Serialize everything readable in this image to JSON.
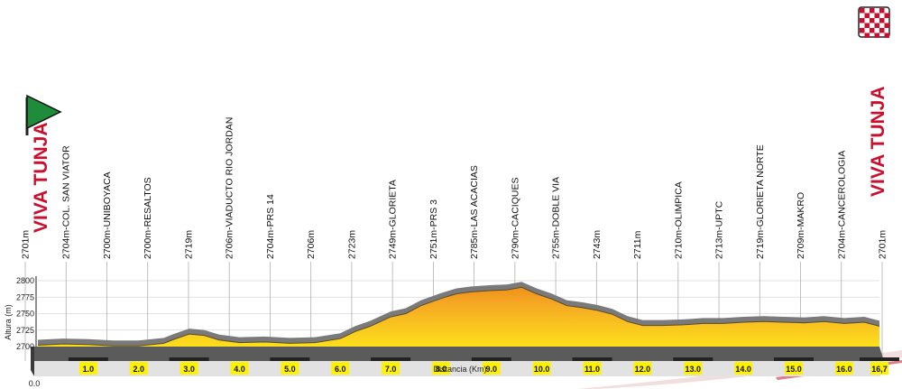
{
  "chart_data": {
    "type": "area",
    "title": "",
    "xlabel": "Distancia (Km)",
    "ylabel": "Altura (m)",
    "xlim": [
      0,
      16.7
    ],
    "ylim": [
      2700,
      2800
    ],
    "y_ticks": [
      2700,
      2725,
      2750,
      2775,
      2800
    ],
    "x_ticks": [
      "1.0",
      "2.0",
      "3.0",
      "4.0",
      "5.0",
      "6.0",
      "7.0",
      "8.0",
      "9.0",
      "10.0",
      "11.0",
      "12.0",
      "13.0",
      "14.0",
      "15.0",
      "16.0",
      "16,7"
    ],
    "x_origin_label": "0.0",
    "grid": true,
    "profile": {
      "x": [
        0,
        0.5,
        1.0,
        1.5,
        2.0,
        2.5,
        2.7,
        3.0,
        3.3,
        3.6,
        4.0,
        4.5,
        5.0,
        5.5,
        6.0,
        6.3,
        6.6,
        7.0,
        7.3,
        7.6,
        8.0,
        8.3,
        8.6,
        9.0,
        9.3,
        9.6,
        9.9,
        10.2,
        10.5,
        10.8,
        11.1,
        11.4,
        11.7,
        12.0,
        12.4,
        12.8,
        13.2,
        13.6,
        14.0,
        14.4,
        14.8,
        15.2,
        15.6,
        16.0,
        16.4,
        16.7
      ],
      "y": [
        2702,
        2704,
        2703,
        2701,
        2701,
        2705,
        2711,
        2719,
        2717,
        2710,
        2706,
        2707,
        2705,
        2706,
        2712,
        2723,
        2731,
        2745,
        2750,
        2762,
        2773,
        2780,
        2783,
        2785,
        2786,
        2790,
        2780,
        2772,
        2762,
        2759,
        2755,
        2749,
        2738,
        2732,
        2732,
        2733,
        2735,
        2735,
        2737,
        2738,
        2737,
        2736,
        2738,
        2735,
        2737,
        2731
      ]
    },
    "series": [
      {
        "points": [
          {
            "km": 0.0,
            "label": "2701m",
            "tall": false
          },
          {
            "km": 0.7,
            "label": "2704m-COL. SAN VIATOR",
            "tall": false
          },
          {
            "km": 1.6,
            "label": "2700m-UNIBOYACA",
            "tall": false
          },
          {
            "km": 2.7,
            "label": "2700m-RESALTOS",
            "tall": false
          },
          {
            "km": 3.3,
            "label": "2719m",
            "tall": false
          },
          {
            "km": 4.3,
            "label": "2706m-VIADUCTO RIO JORDAN",
            "tall": true
          },
          {
            "km": 5.2,
            "label": "2704m-PRS 14",
            "tall": false
          },
          {
            "km": 6.1,
            "label": "2706m",
            "tall": false
          },
          {
            "km": 6.9,
            "label": "2723m",
            "tall": false
          },
          {
            "km": 7.5,
            "label": "2749m-GLORIETA",
            "tall": false
          },
          {
            "km": 8.3,
            "label": "2751m-PRS 3",
            "tall": false
          },
          {
            "km": 9.1,
            "label": "2785m-LAS ACACIAS",
            "tall": false
          },
          {
            "km": 10.1,
            "label": "2790m-CACIQUES",
            "tall": false
          },
          {
            "km": 11.0,
            "label": "2755m-DOBLE VIA",
            "tall": false
          },
          {
            "km": 11.8,
            "label": "2743m",
            "tall": false
          },
          {
            "km": 12.8,
            "label": "2711m",
            "tall": false
          },
          {
            "km": 13.3,
            "label": "2710m-OLIMPICA",
            "tall": false
          },
          {
            "km": 14.4,
            "label": "2713m-UPTC",
            "tall": false
          },
          {
            "km": 15.0,
            "label": "2719m-GLORIETA NORTE",
            "tall": false
          },
          {
            "km": 16.1,
            "label": "2709m-MAKRO",
            "tall": false
          },
          {
            "km": 17.3,
            "label": "2704m-CANCEROLOGIA",
            "tall": false
          },
          {
            "km": 18.3,
            "label": "2701m",
            "tall": false
          }
        ]
      }
    ],
    "start_label": "VIVA TUNJA",
    "finish_label": "VIVA TUNJA",
    "colors": {
      "profile_top": "#e87a10",
      "profile_bottom": "#fff21a",
      "road": "#7a7a7a",
      "base_dark": "#303030",
      "base_light": "#d4d4d4",
      "brand_red": "#c8102e",
      "start_flag": "#1e8c3a"
    },
    "icons": [
      "start-flag-icon",
      "finish-flag-icon"
    ]
  }
}
